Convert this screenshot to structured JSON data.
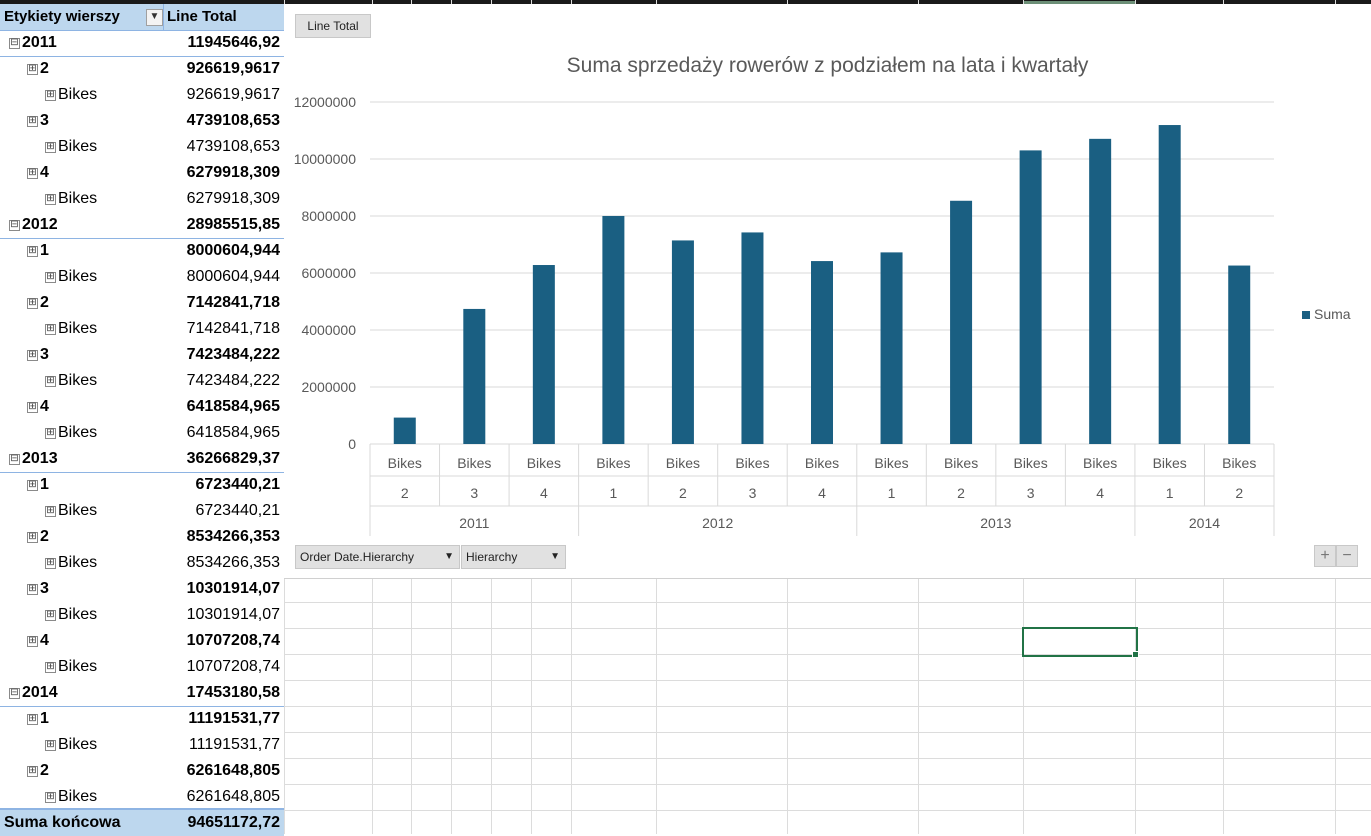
{
  "pivot": {
    "header": {
      "row_label": "Etykiety wierszy",
      "value_label": "Line Total"
    },
    "rows": [
      {
        "level": "year",
        "label": "2011",
        "value": "11945646,92",
        "expander": "⊟"
      },
      {
        "level": "quarter",
        "label": "2",
        "value": "926619,9617",
        "expander": "⊞"
      },
      {
        "level": "item",
        "label": "Bikes",
        "value": "926619,9617",
        "expander": "⊞"
      },
      {
        "level": "quarter",
        "label": "3",
        "value": "4739108,653",
        "expander": "⊞"
      },
      {
        "level": "item",
        "label": "Bikes",
        "value": "4739108,653",
        "expander": "⊞"
      },
      {
        "level": "quarter",
        "label": "4",
        "value": "6279918,309",
        "expander": "⊞"
      },
      {
        "level": "item",
        "label": "Bikes",
        "value": "6279918,309",
        "expander": "⊞"
      },
      {
        "level": "year",
        "label": "2012",
        "value": "28985515,85",
        "expander": "⊟"
      },
      {
        "level": "quarter",
        "label": "1",
        "value": "8000604,944",
        "expander": "⊞"
      },
      {
        "level": "item",
        "label": "Bikes",
        "value": "8000604,944",
        "expander": "⊞"
      },
      {
        "level": "quarter",
        "label": "2",
        "value": "7142841,718",
        "expander": "⊞"
      },
      {
        "level": "item",
        "label": "Bikes",
        "value": "7142841,718",
        "expander": "⊞"
      },
      {
        "level": "quarter",
        "label": "3",
        "value": "7423484,222",
        "expander": "⊞"
      },
      {
        "level": "item",
        "label": "Bikes",
        "value": "7423484,222",
        "expander": "⊞"
      },
      {
        "level": "quarter",
        "label": "4",
        "value": "6418584,965",
        "expander": "⊞"
      },
      {
        "level": "item",
        "label": "Bikes",
        "value": "6418584,965",
        "expander": "⊞"
      },
      {
        "level": "year",
        "label": "2013",
        "value": "36266829,37",
        "expander": "⊟"
      },
      {
        "level": "quarter",
        "label": "1",
        "value": "6723440,21",
        "expander": "⊞"
      },
      {
        "level": "item",
        "label": "Bikes",
        "value": "6723440,21",
        "expander": "⊞"
      },
      {
        "level": "quarter",
        "label": "2",
        "value": "8534266,353",
        "expander": "⊞"
      },
      {
        "level": "item",
        "label": "Bikes",
        "value": "8534266,353",
        "expander": "⊞"
      },
      {
        "level": "quarter",
        "label": "3",
        "value": "10301914,07",
        "expander": "⊞"
      },
      {
        "level": "item",
        "label": "Bikes",
        "value": "10301914,07",
        "expander": "⊞"
      },
      {
        "level": "quarter",
        "label": "4",
        "value": "10707208,74",
        "expander": "⊞"
      },
      {
        "level": "item",
        "label": "Bikes",
        "value": "10707208,74",
        "expander": "⊞"
      },
      {
        "level": "year",
        "label": "2014",
        "value": "17453180,58",
        "expander": "⊟"
      },
      {
        "level": "quarter",
        "label": "1",
        "value": "11191531,77",
        "expander": "⊞"
      },
      {
        "level": "item",
        "label": "Bikes",
        "value": "11191531,77",
        "expander": "⊞"
      },
      {
        "level": "quarter",
        "label": "2",
        "value": "6261648,805",
        "expander": "⊞"
      },
      {
        "level": "item",
        "label": "Bikes",
        "value": "6261648,805",
        "expander": "⊞"
      }
    ],
    "total": {
      "label": "Suma końcowa",
      "value": "94651172,72"
    }
  },
  "chart_panel": {
    "value_field_button": "Line Total",
    "axis_field_button": "Order Date.Hierarchy",
    "filter_field_button": "Hierarchy",
    "zoom_in": "+",
    "zoom_out": "−",
    "dropdown_glyph": "▼",
    "filter_glyph": "▼"
  },
  "chart_data": {
    "type": "bar",
    "title": "Suma sprzedaży rowerów z podziałem na lata i kwartały",
    "categories": [
      {
        "item": "Bikes",
        "quarter": "2",
        "year": "2011"
      },
      {
        "item": "Bikes",
        "quarter": "3",
        "year": "2011"
      },
      {
        "item": "Bikes",
        "quarter": "4",
        "year": "2011"
      },
      {
        "item": "Bikes",
        "quarter": "1",
        "year": "2012"
      },
      {
        "item": "Bikes",
        "quarter": "2",
        "year": "2012"
      },
      {
        "item": "Bikes",
        "quarter": "3",
        "year": "2012"
      },
      {
        "item": "Bikes",
        "quarter": "4",
        "year": "2012"
      },
      {
        "item": "Bikes",
        "quarter": "1",
        "year": "2013"
      },
      {
        "item": "Bikes",
        "quarter": "2",
        "year": "2013"
      },
      {
        "item": "Bikes",
        "quarter": "3",
        "year": "2013"
      },
      {
        "item": "Bikes",
        "quarter": "4",
        "year": "2013"
      },
      {
        "item": "Bikes",
        "quarter": "1",
        "year": "2014"
      },
      {
        "item": "Bikes",
        "quarter": "2",
        "year": "2014"
      }
    ],
    "series": [
      {
        "name": "Suma",
        "color": "#1a5f82",
        "values": [
          926619.9617,
          4739108.653,
          6279918.309,
          8000604.944,
          7142841.718,
          7423484.222,
          6418584.965,
          6723440.21,
          8534266.353,
          10301914.07,
          10707208.74,
          11191531.77,
          6261648.805
        ]
      }
    ],
    "ylim": [
      0,
      12000000
    ],
    "yticks": [
      "0",
      "2000000",
      "4000000",
      "6000000",
      "8000000",
      "10000000",
      "12000000"
    ],
    "grid": true,
    "legend_position": "right"
  }
}
